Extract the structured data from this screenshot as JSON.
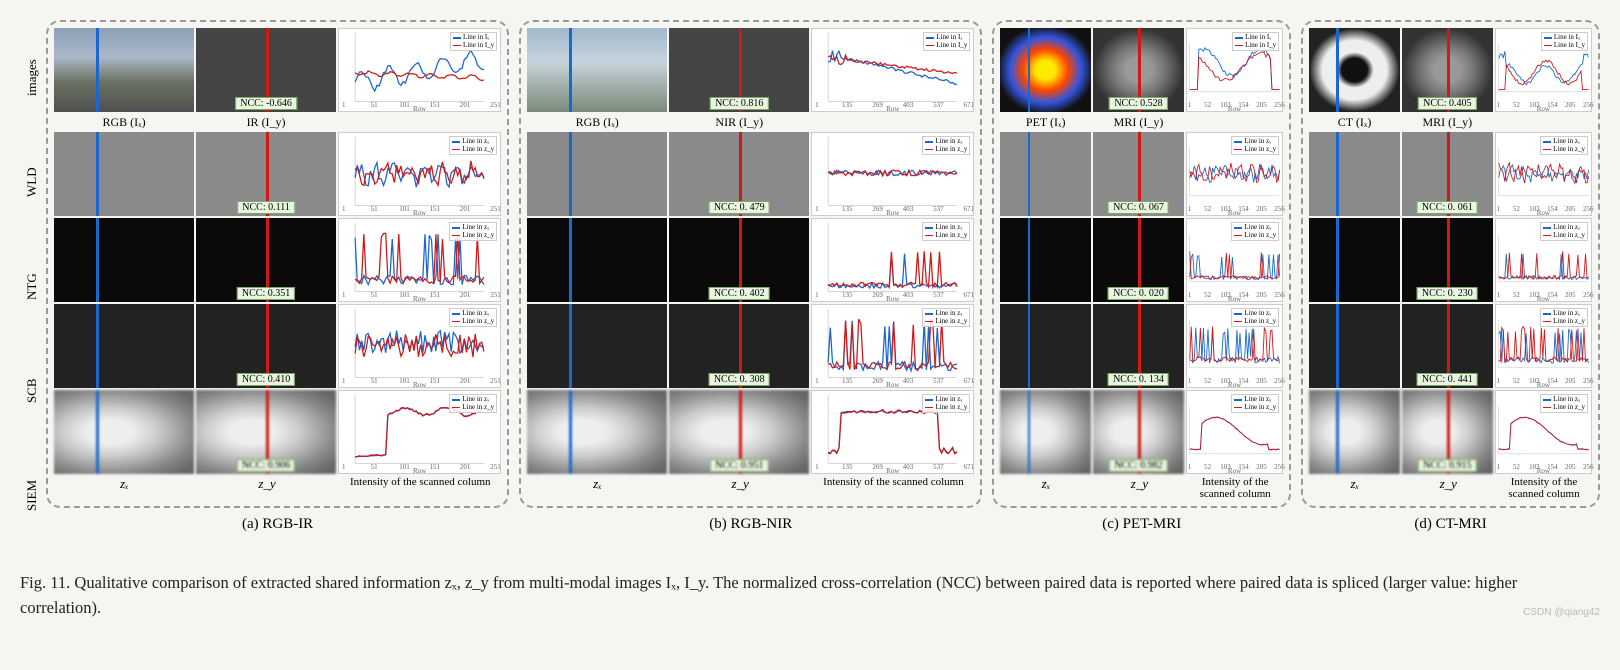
{
  "colors": {
    "line_x": "#1868d0",
    "line_y": "#d01818",
    "panel_border": "#999999",
    "background": "#f5f5f2",
    "ncc_bg": "#e8f5e0",
    "ncc_border": "#7aa860"
  },
  "row_methods": [
    "images",
    "WLD",
    "NTG",
    "SCB",
    "SIEM"
  ],
  "legend": {
    "x": "Line in Iₓ",
    "y": "Line in I_y",
    "zx": "Line in zₓ",
    "zy": "Line in z_y"
  },
  "xaxis_label": "Row",
  "bottom_labels": {
    "zx": "zₓ",
    "zy": "z_y",
    "chart": "Intensity of the scanned column"
  },
  "panels": {
    "a": {
      "caption": "(a) RGB-IR",
      "header_x": "RGB (Iₓ)",
      "header_y": "IR (I_y)",
      "xticks": [
        "1",
        "51",
        "101",
        "151",
        "201",
        "251"
      ],
      "yticks": [
        "0",
        "0.2",
        "0.4",
        "0.6",
        "0.8",
        "1"
      ],
      "rows": [
        {
          "ncc": "NCC: -0.646",
          "chart_type": "diverge"
        },
        {
          "ncc": "NCC: 0.111",
          "chart_type": "noise"
        },
        {
          "ncc": "NCC: 0.351",
          "chart_type": "spikes"
        },
        {
          "ncc": "NCC: 0.410",
          "chart_type": "noise_hi"
        },
        {
          "ncc": "NCC: 0.906",
          "chart_type": "step"
        }
      ]
    },
    "b": {
      "caption": "(b) RGB-NIR",
      "header_x": "RGB (Iₓ)",
      "header_y": "NIR (I_y)",
      "xticks": [
        "1",
        "135",
        "269",
        "403",
        "537",
        "671"
      ],
      "yticks": [
        "0",
        "0.2",
        "0.4",
        "0.6",
        "0.8",
        "1"
      ],
      "rows": [
        {
          "ncc": "NCC: 0.816",
          "chart_type": "decay"
        },
        {
          "ncc": "NCC: 0. 479",
          "chart_type": "flat_noise"
        },
        {
          "ncc": "NCC: 0. 402",
          "chart_type": "low_spikes"
        },
        {
          "ncc": "NCC: 0. 308",
          "chart_type": "spikes"
        },
        {
          "ncc": "NCC: 0.951",
          "chart_type": "plateau"
        }
      ]
    },
    "c": {
      "caption": "(c) PET-MRI",
      "header_x": "PET (Iₓ)",
      "header_y": "MRI (I_y)",
      "xticks": [
        "1",
        "52",
        "103",
        "154",
        "205",
        "256"
      ],
      "yticks": [
        "0",
        "0.2",
        "0.4",
        "0.6",
        "0.8",
        "1"
      ],
      "rows": [
        {
          "ncc": "NCC: 0.528",
          "chart_type": "brain_diff"
        },
        {
          "ncc": "NCC: 0. 067",
          "chart_type": "noise"
        },
        {
          "ncc": "NCC: 0. 020",
          "chart_type": "low_spikes"
        },
        {
          "ncc": "NCC: 0. 134",
          "chart_type": "spikes"
        },
        {
          "ncc": "NCC: 0.982",
          "chart_type": "brain_match"
        }
      ]
    },
    "d": {
      "caption": "(d) CT-MRI",
      "header_x": "CT (Iₓ)",
      "header_y": "MRI (I_y)",
      "xticks": [
        "1",
        "52",
        "103",
        "154",
        "205",
        "256"
      ],
      "yticks": [
        "0",
        "0.2",
        "0.4",
        "0.6",
        "0.8",
        "1"
      ],
      "rows": [
        {
          "ncc": "NCC: 0.405",
          "chart_type": "brain_diff2"
        },
        {
          "ncc": "NCC: 0. 061",
          "chart_type": "noise"
        },
        {
          "ncc": "NCC: 0. 230",
          "chart_type": "low_spikes"
        },
        {
          "ncc": "NCC: 0. 441",
          "chart_type": "spikes"
        },
        {
          "ncc": "NCC: 0.915",
          "chart_type": "brain_match"
        }
      ]
    }
  },
  "caption": "Fig. 11.    Qualitative comparison of extracted shared information zₓ, z_y from multi-modal images Iₓ, I_y. The normalized cross-correlation (NCC) between paired data is reported where paired data is spliced (larger value: higher correlation).",
  "watermark": "CSDN @qiang42"
}
